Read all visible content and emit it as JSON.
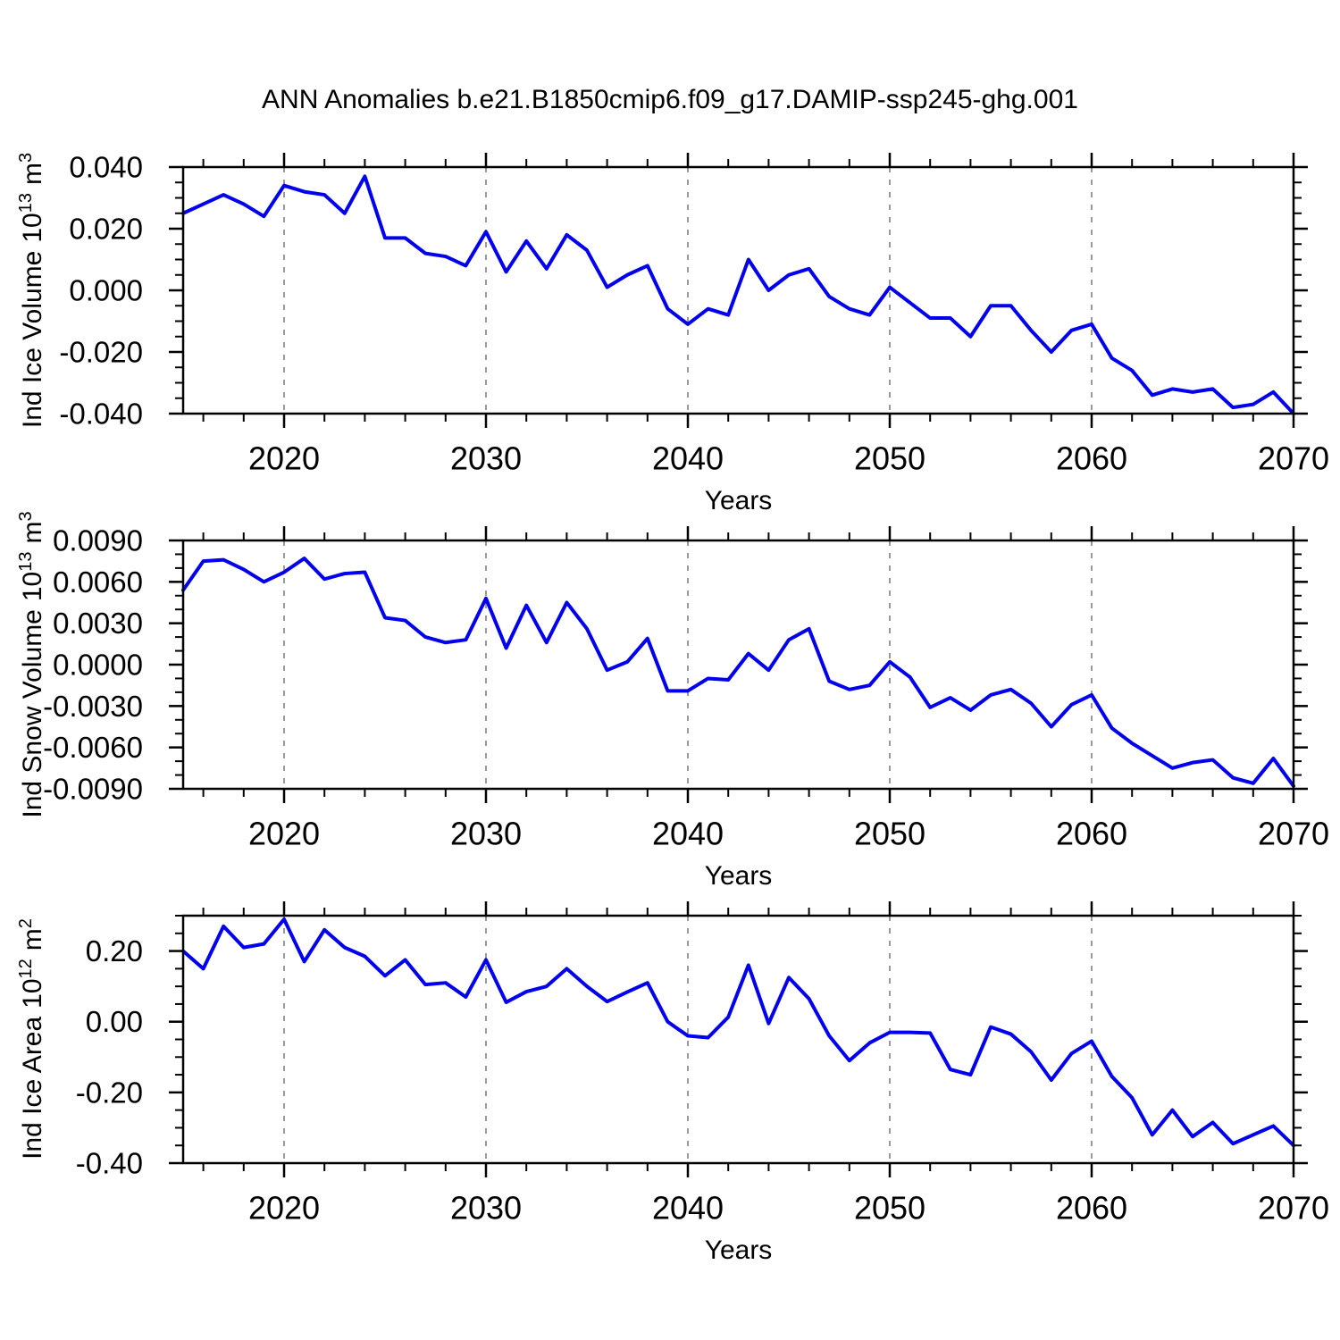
{
  "title": "ANN Anomalies b.e21.B1850cmip6.f09_g17.DAMIP-ssp245-ghg.001",
  "colors": {
    "line": "#0000ee",
    "axis": "#000000",
    "grid": "#999999"
  },
  "chart_data": [
    {
      "type": "line",
      "id": "ind-ice-volume",
      "ylabel": {
        "name": "Ind Ice Volume",
        "power_base": "10",
        "power_exp": "13",
        "unit": "m",
        "unit_exp": "3"
      },
      "xlabel": "Years",
      "xlim": [
        2015,
        2070
      ],
      "ylim": [
        -0.04,
        0.04
      ],
      "grid": "x-decades-dashed",
      "legend": "none",
      "x": [
        2015,
        2016,
        2017,
        2018,
        2019,
        2020,
        2021,
        2022,
        2023,
        2024,
        2025,
        2026,
        2027,
        2028,
        2029,
        2030,
        2031,
        2032,
        2033,
        2034,
        2035,
        2036,
        2037,
        2038,
        2039,
        2040,
        2041,
        2042,
        2043,
        2044,
        2045,
        2046,
        2047,
        2048,
        2049,
        2050,
        2051,
        2052,
        2053,
        2054,
        2055,
        2056,
        2057,
        2058,
        2059,
        2060,
        2061,
        2062,
        2063,
        2064,
        2065,
        2066,
        2067,
        2068,
        2069,
        2070
      ],
      "values": [
        0.025,
        0.028,
        0.031,
        0.028,
        0.024,
        0.034,
        0.032,
        0.031,
        0.025,
        0.037,
        0.017,
        0.017,
        0.012,
        0.011,
        0.008,
        0.019,
        0.006,
        0.016,
        0.007,
        0.018,
        0.013,
        0.001,
        0.005,
        0.008,
        -0.006,
        -0.011,
        -0.006,
        -0.008,
        0.01,
        0.0,
        0.005,
        0.007,
        -0.002,
        -0.006,
        -0.008,
        0.001,
        -0.004,
        -0.009,
        -0.009,
        -0.015,
        -0.005,
        -0.005,
        -0.013,
        -0.02,
        -0.013,
        -0.011,
        -0.022,
        -0.026,
        -0.034,
        -0.032,
        -0.033,
        -0.032,
        -0.038,
        -0.037,
        -0.033,
        -0.04
      ],
      "yticks": {
        "values": [
          0.04,
          0.02,
          0.0,
          -0.02,
          -0.04
        ],
        "labels": [
          "0.040",
          "0.020",
          "0.000",
          "-0.020",
          "-0.040"
        ],
        "minor_step": 0.005
      },
      "xticks": {
        "values": [
          2020,
          2030,
          2040,
          2050,
          2060,
          2070
        ],
        "labels": [
          "2020",
          "2030",
          "2040",
          "2050",
          "2060",
          "2070"
        ],
        "minor_step": 2
      },
      "x_gridlines": [
        2020,
        2030,
        2040,
        2050,
        2060
      ]
    },
    {
      "type": "line",
      "id": "ind-snow-volume",
      "ylabel": {
        "name": "Ind Snow Volume",
        "power_base": "10",
        "power_exp": "13",
        "unit": "m",
        "unit_exp": "3"
      },
      "xlabel": "Years",
      "xlim": [
        2015,
        2070
      ],
      "ylim": [
        -0.009,
        0.009
      ],
      "grid": "x-decades-dashed",
      "legend": "none",
      "x": [
        2015,
        2016,
        2017,
        2018,
        2019,
        2020,
        2021,
        2022,
        2023,
        2024,
        2025,
        2026,
        2027,
        2028,
        2029,
        2030,
        2031,
        2032,
        2033,
        2034,
        2035,
        2036,
        2037,
        2038,
        2039,
        2040,
        2041,
        2042,
        2043,
        2044,
        2045,
        2046,
        2047,
        2048,
        2049,
        2050,
        2051,
        2052,
        2053,
        2054,
        2055,
        2056,
        2057,
        2058,
        2059,
        2060,
        2061,
        2062,
        2063,
        2064,
        2065,
        2066,
        2067,
        2068,
        2069,
        2070
      ],
      "values": [
        0.0054,
        0.0075,
        0.0076,
        0.0069,
        0.006,
        0.0067,
        0.0077,
        0.0062,
        0.0066,
        0.0067,
        0.0034,
        0.0032,
        0.002,
        0.0016,
        0.0018,
        0.0048,
        0.0012,
        0.0043,
        0.0016,
        0.0045,
        0.0026,
        -0.0004,
        0.0002,
        0.0019,
        -0.0019,
        -0.0019,
        -0.001,
        -0.0011,
        0.0008,
        -0.0004,
        0.0018,
        0.0026,
        -0.0012,
        -0.0018,
        -0.0015,
        0.0002,
        -0.0009,
        -0.0031,
        -0.0024,
        -0.0033,
        -0.0022,
        -0.0018,
        -0.0028,
        -0.0045,
        -0.0029,
        -0.0022,
        -0.0046,
        -0.0057,
        -0.0066,
        -0.0075,
        -0.0071,
        -0.0069,
        -0.0082,
        -0.0086,
        -0.0068,
        -0.0088
      ],
      "yticks": {
        "values": [
          0.009,
          0.006,
          0.003,
          0.0,
          -0.003,
          -0.006,
          -0.009
        ],
        "labels": [
          "0.0090",
          "0.0060",
          "0.0030",
          "0.0000",
          "-0.0030",
          "-0.0060",
          "-0.0090"
        ],
        "minor_step": 0.001
      },
      "xticks": {
        "values": [
          2020,
          2030,
          2040,
          2050,
          2060,
          2070
        ],
        "labels": [
          "2020",
          "2030",
          "2040",
          "2050",
          "2060",
          "2070"
        ],
        "minor_step": 2
      },
      "x_gridlines": [
        2020,
        2030,
        2040,
        2050,
        2060
      ]
    },
    {
      "type": "line",
      "id": "ind-ice-area",
      "ylabel": {
        "name": "Ind Ice Area",
        "power_base": "10",
        "power_exp": "12",
        "unit": "m",
        "unit_exp": "2"
      },
      "xlabel": "Years",
      "xlim": [
        2015,
        2070
      ],
      "ylim": [
        -0.4,
        0.3
      ],
      "grid": "x-decades-dashed",
      "legend": "none",
      "x": [
        2015,
        2016,
        2017,
        2018,
        2019,
        2020,
        2021,
        2022,
        2023,
        2024,
        2025,
        2026,
        2027,
        2028,
        2029,
        2030,
        2031,
        2032,
        2033,
        2034,
        2035,
        2036,
        2037,
        2038,
        2039,
        2040,
        2041,
        2042,
        2043,
        2044,
        2045,
        2046,
        2047,
        2048,
        2049,
        2050,
        2051,
        2052,
        2053,
        2054,
        2055,
        2056,
        2057,
        2058,
        2059,
        2060,
        2061,
        2062,
        2063,
        2064,
        2065,
        2066,
        2067,
        2068,
        2069,
        2070
      ],
      "values": [
        0.2,
        0.15,
        0.27,
        0.21,
        0.22,
        0.29,
        0.17,
        0.26,
        0.21,
        0.185,
        0.13,
        0.175,
        0.105,
        0.11,
        0.07,
        0.175,
        0.055,
        0.085,
        0.1,
        0.15,
        0.1,
        0.057,
        0.084,
        0.11,
        0.0,
        -0.04,
        -0.045,
        0.013,
        0.16,
        -0.005,
        0.125,
        0.065,
        -0.04,
        -0.11,
        -0.06,
        -0.03,
        -0.03,
        -0.032,
        -0.135,
        -0.15,
        -0.015,
        -0.035,
        -0.085,
        -0.165,
        -0.09,
        -0.055,
        -0.155,
        -0.215,
        -0.32,
        -0.25,
        -0.325,
        -0.285,
        -0.345,
        -0.32,
        -0.295,
        -0.35
      ],
      "yticks": {
        "values": [
          0.2,
          0.0,
          -0.2,
          -0.4
        ],
        "labels": [
          "0.20",
          "0.00",
          "-0.20",
          "-0.40"
        ],
        "minor_step": 0.05
      },
      "xticks": {
        "values": [
          2020,
          2030,
          2040,
          2050,
          2060,
          2070
        ],
        "labels": [
          "2020",
          "2030",
          "2040",
          "2050",
          "2060",
          "2070"
        ],
        "minor_step": 2
      },
      "x_gridlines": [
        2020,
        2030,
        2040,
        2050,
        2060
      ]
    }
  ]
}
